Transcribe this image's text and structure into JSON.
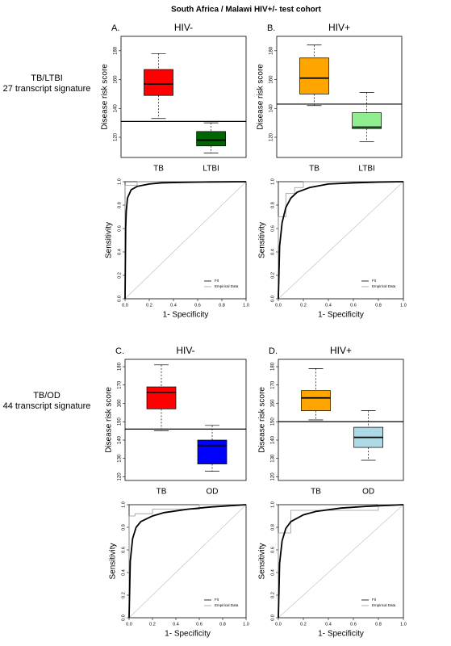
{
  "title": "South Africa / Malawi HIV+/- test cohort",
  "row_labels": [
    [
      "TB/LTBI",
      "27 transcript signature"
    ],
    [
      "TB/OD",
      "44 transcript signature"
    ]
  ],
  "chart_data": [
    {
      "type": "box",
      "panel": "A.",
      "title": "HIV-",
      "ylabel": "Disease risk score",
      "categories": [
        "TB",
        "LTBI"
      ],
      "boxes": [
        {
          "whislo": 133,
          "q1": 149,
          "med": 157,
          "q3": 167,
          "whishi": 178,
          "color": "#ff0000"
        },
        {
          "whislo": 109,
          "q1": 114,
          "med": 118,
          "q3": 124,
          "whishi": 130,
          "color": "#006400"
        }
      ],
      "threshold": 131,
      "ylim": [
        106,
        190
      ],
      "yticks": [
        120,
        140,
        160,
        180
      ]
    },
    {
      "type": "roc",
      "xlabel": "1- Specificity",
      "ylabel": "Sensitivity",
      "series": [
        {
          "name": "Fit",
          "color": "#000000",
          "x": [
            0,
            0.005,
            0.01,
            0.02,
            0.05,
            0.1,
            0.2,
            0.3,
            0.5,
            0.7,
            1
          ],
          "y": [
            0,
            0.6,
            0.75,
            0.86,
            0.93,
            0.96,
            0.98,
            0.99,
            0.995,
            0.998,
            1
          ]
        },
        {
          "name": "Empirical Data",
          "color": "#999999",
          "x": [
            0,
            0,
            0.1,
            0.1,
            1
          ],
          "y": [
            0,
            0.97,
            0.97,
            1,
            1
          ]
        }
      ],
      "xlim": [
        0,
        1
      ],
      "ylim": [
        0,
        1
      ],
      "xticks": [
        {
          "value": 0,
          "label": "0.0"
        },
        {
          "value": 0.2,
          "label": "0.2"
        },
        {
          "value": 0.4,
          "label": "0.4"
        },
        {
          "value": 0.6,
          "label": "0.6"
        },
        {
          "value": 0.8,
          "label": "0.8"
        },
        {
          "value": 1,
          "label": "1.0"
        }
      ],
      "yticks": [
        {
          "value": 0,
          "label": "0.0"
        },
        {
          "value": 0.2,
          "label": "0.2"
        },
        {
          "value": 0.4,
          "label": "0.4"
        },
        {
          "value": 0.6,
          "label": "0.6"
        },
        {
          "value": 0.8,
          "label": "0.8"
        },
        {
          "value": 1,
          "label": "1.0"
        }
      ]
    },
    {
      "type": "box",
      "panel": "B.",
      "title": "HIV+",
      "ylabel": "Disease risk score",
      "categories": [
        "TB",
        "LTBI"
      ],
      "boxes": [
        {
          "whislo": 142,
          "q1": 150,
          "med": 161,
          "q3": 175,
          "whishi": 184,
          "color": "#ffa500"
        },
        {
          "whislo": 117,
          "q1": 126,
          "med": 127,
          "q3": 137,
          "whishi": 151,
          "color": "#90ee90"
        }
      ],
      "threshold": 143,
      "ylim": [
        106,
        190
      ],
      "yticks": [
        120,
        140,
        160,
        180
      ]
    },
    {
      "type": "roc",
      "xlabel": "1- Specificity",
      "ylabel": "Sensitivity",
      "series": [
        {
          "name": "Fit",
          "color": "#000000",
          "x": [
            0,
            0.01,
            0.03,
            0.06,
            0.1,
            0.15,
            0.25,
            0.4,
            0.6,
            0.8,
            1
          ],
          "y": [
            0,
            0.45,
            0.65,
            0.78,
            0.86,
            0.91,
            0.95,
            0.98,
            0.99,
            0.997,
            1
          ]
        },
        {
          "name": "Empirical Data",
          "color": "#999999",
          "x": [
            0,
            0,
            0.06,
            0.06,
            0.13,
            0.13,
            0.2,
            0.2,
            1
          ],
          "y": [
            0,
            0.7,
            0.7,
            0.9,
            0.9,
            0.95,
            0.95,
            1,
            1
          ]
        }
      ],
      "xlim": [
        0,
        1
      ],
      "ylim": [
        0,
        1
      ],
      "xticks": [
        {
          "value": 0,
          "label": "0.0"
        },
        {
          "value": 0.2,
          "label": "0.2"
        },
        {
          "value": 0.4,
          "label": "0.4"
        },
        {
          "value": 0.6,
          "label": "0.6"
        },
        {
          "value": 0.8,
          "label": "0.8"
        },
        {
          "value": 1,
          "label": "1.0"
        }
      ],
      "yticks": [
        {
          "value": 0,
          "label": "0.0"
        },
        {
          "value": 0.2,
          "label": "0.2"
        },
        {
          "value": 0.4,
          "label": "0.4"
        },
        {
          "value": 0.6,
          "label": "0.6"
        },
        {
          "value": 0.8,
          "label": "0.8"
        },
        {
          "value": 1,
          "label": "1.0"
        }
      ]
    },
    {
      "type": "box",
      "panel": "C.",
      "title": "HIV-",
      "ylabel": "Disease risk score",
      "categories": [
        "TB",
        "OD"
      ],
      "boxes": [
        {
          "whislo": 145,
          "q1": 157,
          "med": 166,
          "q3": 169,
          "whishi": 181,
          "color": "#ff0000"
        },
        {
          "whislo": 123,
          "q1": 127,
          "med": 137,
          "q3": 140,
          "whishi": 148,
          "color": "#0000ff"
        }
      ],
      "threshold": 146,
      "ylim": [
        118,
        184
      ],
      "yticks": [
        120,
        130,
        140,
        150,
        160,
        170,
        180
      ]
    },
    {
      "type": "roc",
      "xlabel": "1- Specificity",
      "ylabel": "Sensitivity",
      "series": [
        {
          "name": "Fit",
          "color": "#000000",
          "x": [
            0,
            0.01,
            0.03,
            0.06,
            0.1,
            0.2,
            0.3,
            0.5,
            0.7,
            1
          ],
          "y": [
            0,
            0.5,
            0.7,
            0.8,
            0.85,
            0.9,
            0.93,
            0.96,
            0.98,
            1
          ]
        },
        {
          "name": "Empirical Data",
          "color": "#999999",
          "x": [
            0,
            0,
            0.05,
            0.05,
            0.2,
            0.2,
            0.6,
            0.6,
            1
          ],
          "y": [
            0,
            0.9,
            0.9,
            0.92,
            0.92,
            0.96,
            0.96,
            1,
            1
          ]
        }
      ],
      "xlim": [
        0,
        1
      ],
      "ylim": [
        0,
        1
      ],
      "xticks": [
        {
          "value": 0,
          "label": "0.0"
        },
        {
          "value": 0.2,
          "label": "0.2"
        },
        {
          "value": 0.4,
          "label": "0.4"
        },
        {
          "value": 0.6,
          "label": "0.6"
        },
        {
          "value": 0.8,
          "label": "0.8"
        },
        {
          "value": 1,
          "label": "1.0"
        }
      ],
      "yticks": [
        {
          "value": 0,
          "label": "0.0"
        },
        {
          "value": 0.2,
          "label": "0.2"
        },
        {
          "value": 0.4,
          "label": "0.4"
        },
        {
          "value": 0.6,
          "label": "0.6"
        },
        {
          "value": 0.8,
          "label": "0.8"
        },
        {
          "value": 1,
          "label": "1.0"
        }
      ]
    },
    {
      "type": "box",
      "panel": "D.",
      "title": "HIV+",
      "ylabel": "Disease risk score",
      "categories": [
        "TB",
        "OD"
      ],
      "boxes": [
        {
          "whislo": 151,
          "q1": 156,
          "med": 163,
          "q3": 167,
          "whishi": 179,
          "color": "#ffa500"
        },
        {
          "whislo": 129,
          "q1": 136,
          "med": 141.5,
          "q3": 147,
          "whishi": 156,
          "color": "#add8e6"
        }
      ],
      "threshold": 150,
      "ylim": [
        118,
        184
      ],
      "yticks": [
        120,
        130,
        140,
        150,
        160,
        170,
        180
      ]
    },
    {
      "type": "roc",
      "xlabel": "1- Specificity",
      "ylabel": "Sensitivity",
      "series": [
        {
          "name": "Fit",
          "color": "#000000",
          "x": [
            0,
            0.01,
            0.03,
            0.06,
            0.1,
            0.2,
            0.3,
            0.5,
            0.7,
            1
          ],
          "y": [
            0,
            0.48,
            0.68,
            0.79,
            0.85,
            0.91,
            0.94,
            0.97,
            0.985,
            1
          ]
        },
        {
          "name": "Empirical Data",
          "color": "#999999",
          "x": [
            0,
            0,
            0.1,
            0.1,
            0.8,
            0.8,
            1
          ],
          "y": [
            0,
            0.75,
            0.75,
            0.95,
            0.95,
            1,
            1
          ]
        }
      ],
      "xlim": [
        0,
        1
      ],
      "ylim": [
        0,
        1
      ],
      "xticks": [
        {
          "value": 0,
          "label": "0.0"
        },
        {
          "value": 0.2,
          "label": "0.2"
        },
        {
          "value": 0.4,
          "label": "0.4"
        },
        {
          "value": 0.6,
          "label": "0.6"
        },
        {
          "value": 0.8,
          "label": "0.8"
        },
        {
          "value": 1,
          "label": "1.0"
        }
      ],
      "yticks": [
        {
          "value": 0,
          "label": "0.0"
        },
        {
          "value": 0.2,
          "label": "0.2"
        },
        {
          "value": 0.4,
          "label": "0.4"
        },
        {
          "value": 0.6,
          "label": "0.6"
        },
        {
          "value": 0.8,
          "label": "0.8"
        },
        {
          "value": 1,
          "label": "1.0"
        }
      ]
    }
  ]
}
